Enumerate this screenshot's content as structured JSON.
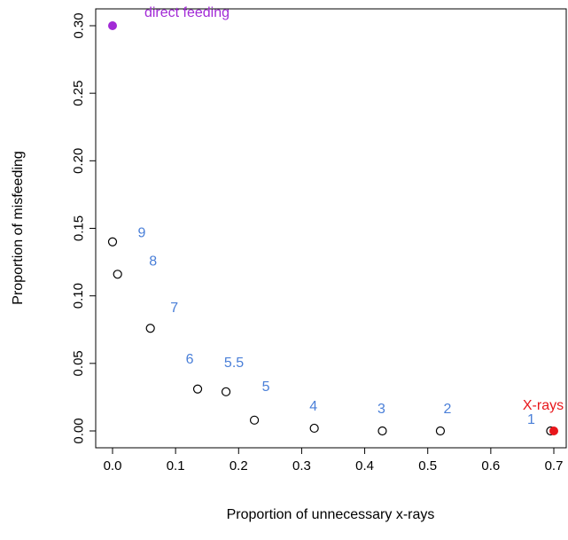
{
  "chart_data": {
    "type": "scatter",
    "title": "",
    "xlabel": "Proportion of unnecessary x-rays",
    "ylabel": "Proportion of misfeeding",
    "xlim": [
      0.0,
      0.7
    ],
    "ylim": [
      0.0,
      0.3
    ],
    "x_ticks": [
      0.0,
      0.1,
      0.2,
      0.3,
      0.4,
      0.5,
      0.6,
      0.7
    ],
    "y_ticks": [
      0.0,
      0.05,
      0.1,
      0.15,
      0.2,
      0.25,
      0.3
    ],
    "x_tick_labels": [
      "0.0",
      "0.1",
      "0.2",
      "0.3",
      "0.4",
      "0.5",
      "0.6",
      "0.7"
    ],
    "y_tick_labels": [
      "0.00",
      "0.05",
      "0.10",
      "0.15",
      "0.20",
      "0.25",
      "0.30"
    ],
    "grid": false,
    "series": [
      {
        "marker": "open-circle",
        "color": "#000000",
        "label_color": "#4a7fd8",
        "points": [
          {
            "label": "9",
            "x": 0.0,
            "y": 0.14
          },
          {
            "label": "8",
            "x": 0.008,
            "y": 0.116
          },
          {
            "label": "7",
            "x": 0.06,
            "y": 0.076
          },
          {
            "label": "6",
            "x": 0.135,
            "y": 0.031
          },
          {
            "label": "5.5",
            "x": 0.18,
            "y": 0.029
          },
          {
            "label": "5",
            "x": 0.225,
            "y": 0.008
          },
          {
            "label": "4",
            "x": 0.32,
            "y": 0.002
          },
          {
            "label": "3",
            "x": 0.428,
            "y": 0.0
          },
          {
            "label": "2",
            "x": 0.52,
            "y": 0.0
          },
          {
            "label": "1",
            "x": 0.695,
            "y": 0.0
          }
        ]
      },
      {
        "marker": "filled-circle",
        "color": "#e8161b",
        "points": [
          {
            "label": "X-rays",
            "x": 0.7,
            "y": 0.0
          }
        ]
      },
      {
        "marker": "filled-circle",
        "color": "#a22bd6",
        "points": [
          {
            "label": "direct feeding",
            "x": 0.0,
            "y": 0.3
          }
        ]
      }
    ]
  }
}
